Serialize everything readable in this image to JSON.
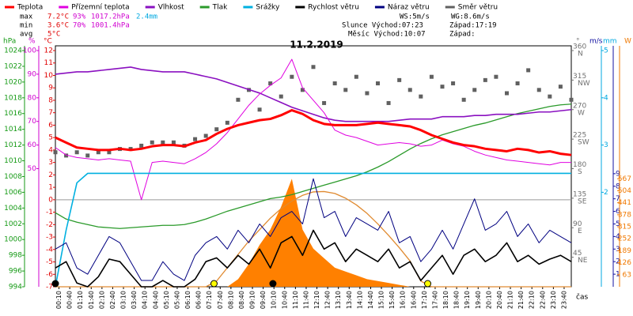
{
  "chart_data": {
    "type": "weather",
    "title": "11.2.2019",
    "stats": [
      [
        "max",
        "7.2°C",
        "93%",
        "1017.2hPa",
        "2.4mm"
      ],
      [
        "min",
        "3.6°C",
        "70%",
        "1001.4hPa"
      ],
      [
        "avg",
        "5°C"
      ]
    ],
    "info": [
      "WS:5m/s",
      "WG:8.6m/s",
      "Slunce Východ:07:23",
      "Západ:17:19",
      "Měsíc Východ:10:07",
      "Západ:"
    ],
    "x_label": "čas",
    "xlim": [
      0,
      24
    ],
    "xticks": [
      {
        "value": 0.167,
        "label": "00:10"
      },
      {
        "value": 0.667,
        "label": "00:40"
      },
      {
        "value": 1.167,
        "label": "01:10"
      },
      {
        "value": 1.667,
        "label": "01:40"
      },
      {
        "value": 2.167,
        "label": "02:10"
      },
      {
        "value": 2.667,
        "label": "02:40"
      },
      {
        "value": 3.167,
        "label": "03:10"
      },
      {
        "value": 3.667,
        "label": "03:40"
      },
      {
        "value": 4.167,
        "label": "04:10"
      },
      {
        "value": 4.667,
        "label": "04:40"
      },
      {
        "value": 5.167,
        "label": "05:10"
      },
      {
        "value": 5.667,
        "label": "05:40"
      },
      {
        "value": 6.167,
        "label": "06:10"
      },
      {
        "value": 6.667,
        "label": "06:40"
      },
      {
        "value": 7.167,
        "label": "07:10"
      },
      {
        "value": 7.667,
        "label": "07:40"
      },
      {
        "value": 8.167,
        "label": "08:10"
      },
      {
        "value": 8.667,
        "label": "08:40"
      },
      {
        "value": 9.167,
        "label": "09:10"
      },
      {
        "value": 9.667,
        "label": "09:40"
      },
      {
        "value": 10.167,
        "label": "10:10"
      },
      {
        "value": 10.667,
        "label": "10:40"
      },
      {
        "value": 11.167,
        "label": "11:10"
      },
      {
        "value": 11.667,
        "label": "11:40"
      },
      {
        "value": 12.167,
        "label": "12:10"
      },
      {
        "value": 12.667,
        "label": "12:40"
      },
      {
        "value": 13.167,
        "label": "13:10"
      },
      {
        "value": 13.667,
        "label": "13:40"
      },
      {
        "value": 14.167,
        "label": "14:10"
      },
      {
        "value": 14.667,
        "label": "14:40"
      },
      {
        "value": 15.167,
        "label": "15:10"
      },
      {
        "value": 15.667,
        "label": "15:40"
      },
      {
        "value": 16.167,
        "label": "16:10"
      },
      {
        "value": 16.667,
        "label": "16:40"
      },
      {
        "value": 17.167,
        "label": "17:10"
      },
      {
        "value": 17.667,
        "label": "17:40"
      },
      {
        "value": 18.167,
        "label": "18:10"
      },
      {
        "value": 18.667,
        "label": "18:40"
      },
      {
        "value": 19.167,
        "label": "19:10"
      },
      {
        "value": 19.667,
        "label": "19:40"
      },
      {
        "value": 20.167,
        "label": "20:10"
      },
      {
        "value": 20.667,
        "label": "20:40"
      },
      {
        "value": 21.167,
        "label": "21:10"
      },
      {
        "value": 21.667,
        "label": "21:40"
      },
      {
        "value": 22.167,
        "label": "22:10"
      },
      {
        "value": 22.667,
        "label": "22:40"
      },
      {
        "value": 23.167,
        "label": "23:10"
      },
      {
        "value": 23.667,
        "label": "23:40"
      }
    ],
    "x": [
      0,
      0.5,
      1,
      1.5,
      2,
      2.5,
      3,
      3.5,
      4,
      4.5,
      5,
      5.5,
      6,
      6.5,
      7,
      7.5,
      8,
      8.5,
      9,
      9.5,
      10,
      10.5,
      11,
      11.5,
      12,
      12.5,
      13,
      13.5,
      14,
      14.5,
      15,
      15.5,
      16,
      16.5,
      17,
      17.5,
      18,
      18.5,
      19,
      19.5,
      20,
      20.5,
      21,
      21.5,
      22,
      22.5,
      23,
      23.5,
      24
    ],
    "axes": {
      "hpa": {
        "label": "hPa",
        "color": "#159a15",
        "lim": [
          994,
          1024
        ],
        "ticks": [
          994,
          996,
          998,
          1000,
          1002,
          1004,
          1006,
          1008,
          1010,
          1012,
          1014,
          1016,
          1018,
          1020,
          1022,
          1024
        ]
      },
      "pct": {
        "label": "%",
        "color": "#d000d0",
        "lim": [
          0,
          100
        ],
        "ticks": [
          50,
          60,
          70,
          80,
          90,
          100
        ]
      },
      "temp": {
        "label": "°C",
        "color": "#e00000",
        "lim": [
          -7,
          12
        ],
        "ticks": [
          -7,
          -6,
          -5,
          -4,
          -3,
          -2,
          -1,
          0,
          1,
          2,
          3,
          4,
          5,
          6,
          7,
          8,
          9,
          10,
          11,
          12
        ]
      },
      "dir": {
        "label": "°",
        "color": "#707070",
        "lim": [
          0,
          360
        ],
        "ticks": [
          45,
          90,
          135,
          180,
          225,
          270,
          315,
          360
        ],
        "tick_names": [
          "NE",
          "E",
          "SE",
          "S",
          "SW",
          "W",
          "NW",
          "N"
        ]
      },
      "ms": {
        "label": "m/s",
        "color": "#1010a0",
        "lim": [
          0,
          18.8
        ],
        "ticks": [
          1,
          2,
          3,
          4,
          5,
          6,
          7,
          8,
          9
        ]
      },
      "mm": {
        "label": "mm",
        "color": "#00a8e0",
        "lim": [
          0,
          5
        ],
        "ticks": [
          2,
          3,
          4,
          5
        ]
      },
      "w": {
        "label": "W",
        "color": "#f07800",
        "lim": [
          0,
          1240
        ],
        "ticks": [
          63,
          126,
          189,
          252,
          315,
          378,
          441,
          504,
          567
        ]
      }
    },
    "series": [
      {
        "kind": "area",
        "axis": "w",
        "color": "#ff8000",
        "values": [
          0,
          0,
          0,
          0,
          0,
          0,
          0,
          0,
          0,
          0,
          0,
          0,
          0,
          0,
          0,
          0,
          0,
          40,
          120,
          220,
          300,
          420,
          567,
          300,
          200,
          150,
          100,
          80,
          60,
          40,
          30,
          20,
          10,
          0,
          0,
          0,
          0,
          0,
          0,
          0,
          0,
          0,
          0,
          0,
          0,
          0,
          0,
          0,
          0
        ]
      },
      {
        "kind": "line",
        "axis": "w",
        "color": "#e08a30",
        "width": 1.3,
        "values": [
          0,
          0,
          0,
          0,
          0,
          0,
          0,
          0,
          0,
          0,
          0,
          0,
          0,
          0,
          0,
          30,
          100,
          170,
          240,
          300,
          360,
          410,
          450,
          480,
          498,
          500,
          490,
          465,
          430,
          385,
          330,
          270,
          205,
          135,
          30,
          0,
          0,
          0,
          0,
          0,
          0,
          0,
          0,
          0,
          0,
          0,
          0,
          0,
          0
        ]
      },
      {
        "name": "Směr větru",
        "kind": "scatter",
        "axis": "dir",
        "color": "#606060",
        "values": [
          205,
          200,
          205,
          200,
          205,
          205,
          210,
          210,
          215,
          220,
          220,
          220,
          215,
          225,
          230,
          240,
          250,
          285,
          300,
          270,
          310,
          290,
          320,
          300,
          335,
          280,
          310,
          300,
          320,
          295,
          310,
          280,
          315,
          300,
          290,
          320,
          305,
          310,
          285,
          300,
          315,
          320,
          295,
          310,
          330,
          300,
          290,
          305,
          285
        ]
      },
      {
        "name": "Tlak",
        "kind": "line",
        "axis": "hpa",
        "color": "#2a9a2a",
        "width": 1.3,
        "values": [
          1003.4,
          1002.6,
          1002.2,
          1001.9,
          1001.6,
          1001.5,
          1001.4,
          1001.5,
          1001.6,
          1001.7,
          1001.8,
          1001.8,
          1001.9,
          1002.2,
          1002.6,
          1003.1,
          1003.6,
          1004.0,
          1004.4,
          1004.8,
          1005.2,
          1005.4,
          1005.7,
          1006.1,
          1006.5,
          1006.9,
          1007.3,
          1007.7,
          1008.1,
          1008.6,
          1009.2,
          1009.9,
          1010.7,
          1011.5,
          1012.2,
          1012.8,
          1013.3,
          1013.7,
          1014.1,
          1014.5,
          1014.8,
          1015.2,
          1015.6,
          1016.0,
          1016.3,
          1016.6,
          1016.9,
          1017.1,
          1017.2
        ]
      },
      {
        "name": "Vlhkost",
        "kind": "line",
        "axis": "pct",
        "color": "#8a10c0",
        "width": 1.6,
        "values": [
          90,
          90.5,
          91,
          91,
          91.5,
          92,
          92.5,
          93,
          92,
          91.5,
          91,
          91,
          91,
          90,
          89,
          88,
          86.5,
          85,
          83.5,
          82,
          80,
          78,
          76,
          74.5,
          73,
          71.5,
          70.5,
          70,
          70,
          70,
          70,
          70,
          70.5,
          71,
          71,
          71,
          72,
          72,
          72,
          72.5,
          72.5,
          73,
          73,
          73,
          73.5,
          74,
          74,
          74.5,
          75
        ]
      },
      {
        "name": "Přízemní teplota",
        "kind": "line",
        "axis": "temp",
        "color": "#e000e0",
        "width": 1,
        "values": [
          4.2,
          3.6,
          3.4,
          3.3,
          3.2,
          3.3,
          3.2,
          3.1,
          0.0,
          3.0,
          3.1,
          3.0,
          2.9,
          3.3,
          3.8,
          4.5,
          5.4,
          6.5,
          7.6,
          8.5,
          9.2,
          9.8,
          11.3,
          9.0,
          8.0,
          7.0,
          5.6,
          5.2,
          5.0,
          4.7,
          4.4,
          4.5,
          4.6,
          4.5,
          4.3,
          4.4,
          4.8,
          4.5,
          4.3,
          3.9,
          3.6,
          3.4,
          3.2,
          3.1,
          3.0,
          2.9,
          2.8,
          3.0,
          3.0
        ]
      },
      {
        "name": "Teplota",
        "kind": "line",
        "axis": "temp",
        "color": "#ff0000",
        "width": 3,
        "values": [
          5.0,
          4.6,
          4.2,
          4.1,
          4.0,
          4.0,
          4.1,
          4.0,
          4.1,
          4.3,
          4.4,
          4.4,
          4.3,
          4.6,
          4.8,
          5.3,
          5.7,
          6.0,
          6.2,
          6.4,
          6.5,
          6.8,
          7.2,
          6.9,
          6.4,
          6.1,
          6.0,
          6.0,
          6.0,
          6.1,
          6.2,
          6.1,
          6.0,
          5.9,
          5.6,
          5.2,
          4.9,
          4.6,
          4.4,
          4.3,
          4.1,
          4.0,
          3.9,
          4.1,
          4.0,
          3.8,
          3.9,
          3.7,
          3.6
        ]
      },
      {
        "name": "Srážky",
        "kind": "line",
        "axis": "mm",
        "color": "#00b0e0",
        "width": 1.6,
        "values": [
          0,
          1.2,
          2.2,
          2.4,
          2.4,
          2.4,
          2.4,
          2.4,
          2.4,
          2.4,
          2.4,
          2.4,
          2.4,
          2.4,
          2.4,
          2.4,
          2.4,
          2.4,
          2.4,
          2.4,
          2.4,
          2.4,
          2.4,
          2.4,
          2.4,
          2.4,
          2.4,
          2.4,
          2.4,
          2.4,
          2.4,
          2.4,
          2.4,
          2.4,
          2.4,
          2.4,
          2.4,
          2.4,
          2.4,
          2.4,
          2.4,
          2.4,
          2.4,
          2.4,
          2.4,
          2.4,
          2.4,
          2.4,
          2.4
        ]
      },
      {
        "name": "Rychlost větru",
        "kind": "line",
        "axis": "ms",
        "color": "#000000",
        "width": 1.6,
        "values": [
          1.5,
          2.0,
          0.3,
          0,
          0.8,
          2.2,
          2.0,
          1.0,
          0,
          0,
          0.5,
          0,
          0,
          0.6,
          2.0,
          2.3,
          1.5,
          2.5,
          1.8,
          3.0,
          1.5,
          3.5,
          4.0,
          2.5,
          4.5,
          3.0,
          3.5,
          2.0,
          3.0,
          2.5,
          2.0,
          3.0,
          1.5,
          2.0,
          0.5,
          1.5,
          2.5,
          1.0,
          2.5,
          3.0,
          2.0,
          2.5,
          3.5,
          2.0,
          2.5,
          1.8,
          2.2,
          2.5,
          2.0
        ]
      },
      {
        "name": "Náraz větru",
        "kind": "line",
        "axis": "ms",
        "color": "#000080",
        "width": 1,
        "values": [
          3.0,
          3.5,
          1.5,
          1.0,
          2.5,
          4.0,
          3.5,
          2.0,
          0.5,
          0.5,
          2.0,
          1.0,
          0.5,
          2.5,
          3.5,
          4.0,
          3.0,
          4.5,
          3.5,
          5.0,
          4.0,
          5.5,
          6.0,
          5.0,
          8.6,
          5.5,
          6.0,
          4.0,
          5.5,
          5.0,
          4.5,
          6.0,
          3.5,
          4.0,
          2.0,
          3.0,
          4.5,
          3.0,
          5.0,
          7.0,
          4.5,
          5.0,
          6.0,
          4.0,
          5.0,
          3.5,
          4.5,
          4.0,
          3.5
        ]
      }
    ],
    "legend_order": [
      "Teplota",
      "Přízemní teplota",
      "Vlhkost",
      "Tlak",
      "Srážky",
      "Rychlost větru",
      "Náraz větru",
      "Směr větru"
    ],
    "sun": [
      7.38,
      17.32
    ],
    "moon": [
      0,
      10.12
    ],
    "zero_line": true
  }
}
